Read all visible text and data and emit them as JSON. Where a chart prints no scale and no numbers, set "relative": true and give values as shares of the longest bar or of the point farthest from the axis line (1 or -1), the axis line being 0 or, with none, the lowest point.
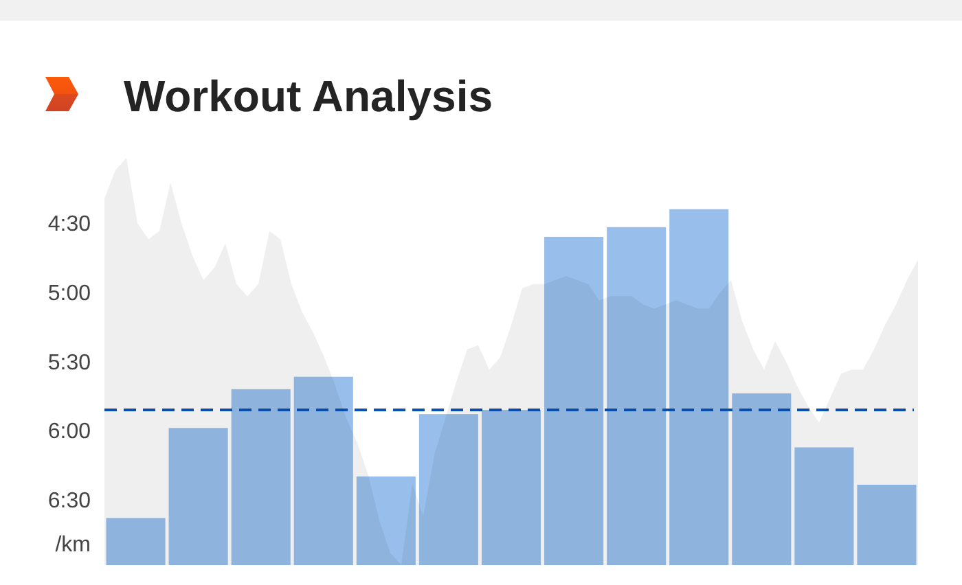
{
  "chart_data": [
    {
      "type": "bar",
      "title": "Workout Analysis",
      "ylabel": "/km",
      "categories": [
        null,
        null,
        null,
        null,
        null,
        null,
        null,
        null,
        null,
        null,
        null,
        null,
        null
      ],
      "base": [
        6.96,
        6.96,
        6.96,
        6.96,
        6.96,
        6.96,
        6.96,
        6.96,
        6.96,
        6.96,
        6.96,
        6.96,
        6.96
      ],
      "values": [
        -0.34,
        -0.99,
        -1.27,
        -1.36,
        -0.64,
        -1.09,
        -1.12,
        -2.37,
        -2.44,
        -2.57,
        -1.24,
        -0.85,
        -0.58
      ],
      "color": "#98bfeb",
      "ylim": [
        6.96,
        4.39
      ],
      "yticks": [
        {
          "value": 4.5,
          "label": "4:30"
        },
        {
          "value": 5,
          "label": "5:00"
        },
        {
          "value": 5.5,
          "label": "5:30"
        },
        {
          "value": 6,
          "label": "6:00"
        },
        {
          "value": 6.5,
          "label": "6:30"
        }
      ],
      "tick_labels": "y",
      "ref_lines": [
        {
          "axis": "y",
          "value": 5.84,
          "color": "#0b50b4",
          "line_style": "dashed"
        }
      ]
    },
    {
      "type": "area",
      "relative": true,
      "color": "#efefef",
      "categories": [
        null,
        null,
        null,
        null,
        null,
        null,
        null,
        null,
        null,
        null,
        null,
        null,
        null,
        null,
        null,
        null,
        null,
        null,
        null,
        null,
        null,
        null,
        null,
        null,
        null,
        null,
        null,
        null,
        null,
        null,
        null,
        null,
        null,
        null,
        null,
        null,
        null,
        null,
        null,
        null,
        null,
        null,
        null,
        null,
        null,
        null,
        null,
        null,
        null,
        null,
        null,
        null,
        null,
        null,
        null,
        null,
        null,
        null,
        null,
        null,
        null,
        null,
        null,
        null,
        null,
        null,
        null,
        null,
        null,
        null,
        null,
        null,
        null,
        null,
        null
      ],
      "values": [
        0.9,
        0.97,
        1.0,
        0.84,
        0.8,
        0.82,
        0.94,
        0.84,
        0.76,
        0.7,
        0.73,
        0.79,
        0.69,
        0.66,
        0.69,
        0.82,
        0.8,
        0.69,
        0.62,
        0.57,
        0.51,
        0.44,
        0.36,
        0.3,
        0.22,
        0.11,
        0.03,
        0,
        0.2,
        0.12,
        0.27,
        0.36,
        0.45,
        0.53,
        0.54,
        0.48,
        0.51,
        0.59,
        0.68,
        0.69,
        0.69,
        0.7,
        0.71,
        0.7,
        0.69,
        0.65,
        0.66,
        0.66,
        0.66,
        0.64,
        0.63,
        0.64,
        0.65,
        0.64,
        0.63,
        0.63,
        0.67,
        0.7,
        0.6,
        0.53,
        0.48,
        0.55,
        0.5,
        0.44,
        0.39,
        0.35,
        0.41,
        0.47,
        0.48,
        0.48,
        0.53,
        0.59,
        0.64,
        0.7,
        0.75
      ]
    }
  ]
}
